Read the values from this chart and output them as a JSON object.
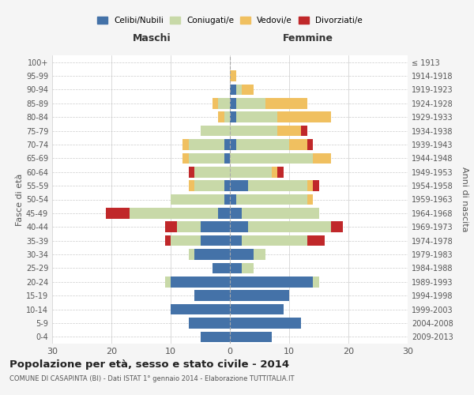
{
  "age_groups": [
    "0-4",
    "5-9",
    "10-14",
    "15-19",
    "20-24",
    "25-29",
    "30-34",
    "35-39",
    "40-44",
    "45-49",
    "50-54",
    "55-59",
    "60-64",
    "65-69",
    "70-74",
    "75-79",
    "80-84",
    "85-89",
    "90-94",
    "95-99",
    "100+"
  ],
  "birth_years": [
    "2009-2013",
    "2004-2008",
    "1999-2003",
    "1994-1998",
    "1989-1993",
    "1984-1988",
    "1979-1983",
    "1974-1978",
    "1969-1973",
    "1964-1968",
    "1959-1963",
    "1954-1958",
    "1949-1953",
    "1944-1948",
    "1939-1943",
    "1934-1938",
    "1929-1933",
    "1924-1928",
    "1919-1923",
    "1914-1918",
    "≤ 1913"
  ],
  "colors": {
    "celibi": "#4472a8",
    "coniugati": "#c8d9a8",
    "vedovi": "#f0c060",
    "divorziati": "#c0282a"
  },
  "maschi": {
    "celibi": [
      5,
      7,
      10,
      6,
      10,
      3,
      6,
      5,
      5,
      2,
      1,
      1,
      0,
      1,
      1,
      0,
      0,
      0,
      0,
      0,
      0
    ],
    "coniugati": [
      0,
      0,
      0,
      0,
      1,
      0,
      1,
      5,
      4,
      15,
      9,
      5,
      6,
      6,
      6,
      5,
      1,
      2,
      0,
      0,
      0
    ],
    "vedovi": [
      0,
      0,
      0,
      0,
      0,
      0,
      0,
      0,
      0,
      0,
      0,
      1,
      0,
      1,
      1,
      0,
      1,
      1,
      0,
      0,
      0
    ],
    "divorziati": [
      0,
      0,
      0,
      0,
      0,
      0,
      0,
      1,
      2,
      4,
      0,
      0,
      1,
      0,
      0,
      0,
      0,
      0,
      0,
      0,
      0
    ]
  },
  "femmine": {
    "celibi": [
      7,
      12,
      9,
      10,
      14,
      2,
      4,
      2,
      3,
      2,
      1,
      3,
      0,
      0,
      1,
      0,
      1,
      1,
      1,
      0,
      0
    ],
    "coniugati": [
      0,
      0,
      0,
      0,
      1,
      2,
      2,
      11,
      14,
      13,
      12,
      10,
      7,
      14,
      9,
      8,
      7,
      5,
      1,
      0,
      0
    ],
    "vedovi": [
      0,
      0,
      0,
      0,
      0,
      0,
      0,
      0,
      0,
      0,
      1,
      1,
      1,
      3,
      3,
      4,
      9,
      7,
      2,
      1,
      0
    ],
    "divorziati": [
      0,
      0,
      0,
      0,
      0,
      0,
      0,
      3,
      2,
      0,
      0,
      1,
      1,
      0,
      1,
      1,
      0,
      0,
      0,
      0,
      0
    ]
  },
  "xlim": 30,
  "title": "Popolazione per età, sesso e stato civile - 2014",
  "subtitle": "COMUNE DI CASAPINTA (BI) - Dati ISTAT 1° gennaio 2014 - Elaborazione TUTTITALIA.IT",
  "ylabel_left": "Fasce di età",
  "ylabel_right": "Anni di nascita",
  "xlabel_left": "Maschi",
  "xlabel_right": "Femmine",
  "bg_color": "#f5f5f5",
  "plot_bg": "#ffffff",
  "grid_color": "#cccccc"
}
